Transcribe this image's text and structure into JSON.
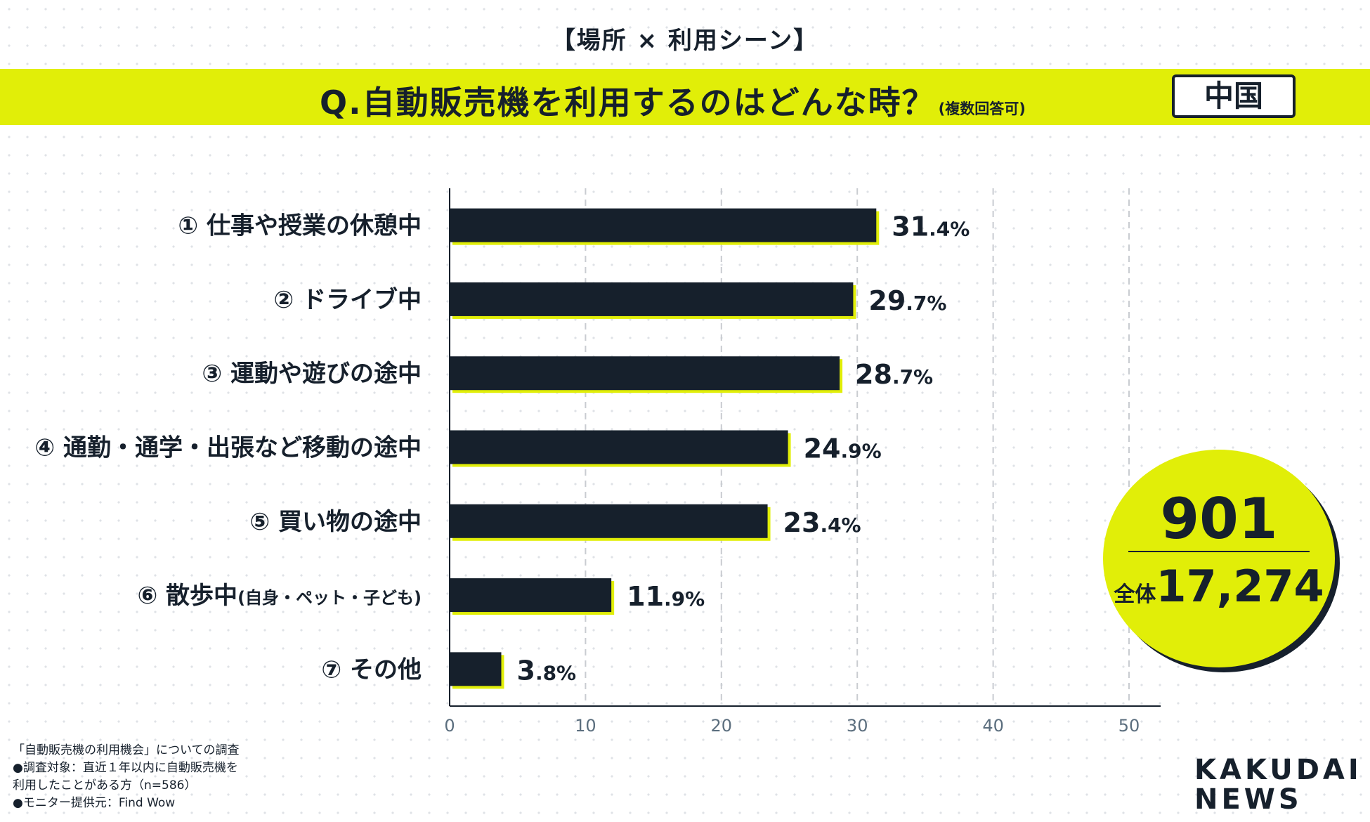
{
  "header": {
    "tag": "【場所 × 利用シーン】",
    "question": "Q.自動販売機を利用するのはどんな時？",
    "question_note": "(複数回答可)",
    "region": "中国"
  },
  "colors": {
    "accent": "#e1ee08",
    "bar": "#16202c",
    "text": "#16202c",
    "grid": "#c9ccd1"
  },
  "chart_data": {
    "type": "bar",
    "orientation": "horizontal",
    "categories": [
      "① 仕事や授業の休憩中",
      "② ドライブ中",
      "③ 運動や遊びの途中",
      "④ 通勤・通学・出張など移動の途中",
      "⑤ 買い物の途中",
      "⑥ 散歩中",
      "⑦ その他"
    ],
    "category_notes": [
      "",
      "",
      "",
      "",
      "",
      "(自身・ペット・子ども)",
      ""
    ],
    "values": [
      31.4,
      29.7,
      28.7,
      24.9,
      23.4,
      11.9,
      3.8
    ],
    "value_unit": "%",
    "xlim": [
      0,
      50
    ],
    "xticks": [
      0,
      10,
      20,
      30,
      40,
      50
    ],
    "grid": true
  },
  "sample": {
    "count": "901",
    "total_label": "全体",
    "total_value": "17,274"
  },
  "footnote": [
    "「自動販売機の利用機会」についての調査",
    "●調査対象：直近１年以内に自動販売機を",
    "利用したことがある方（n=586）",
    "●モニター提供元：Find Wow"
  ],
  "brand": {
    "line1": "KAKUDAI",
    "line2": "NEWS"
  }
}
